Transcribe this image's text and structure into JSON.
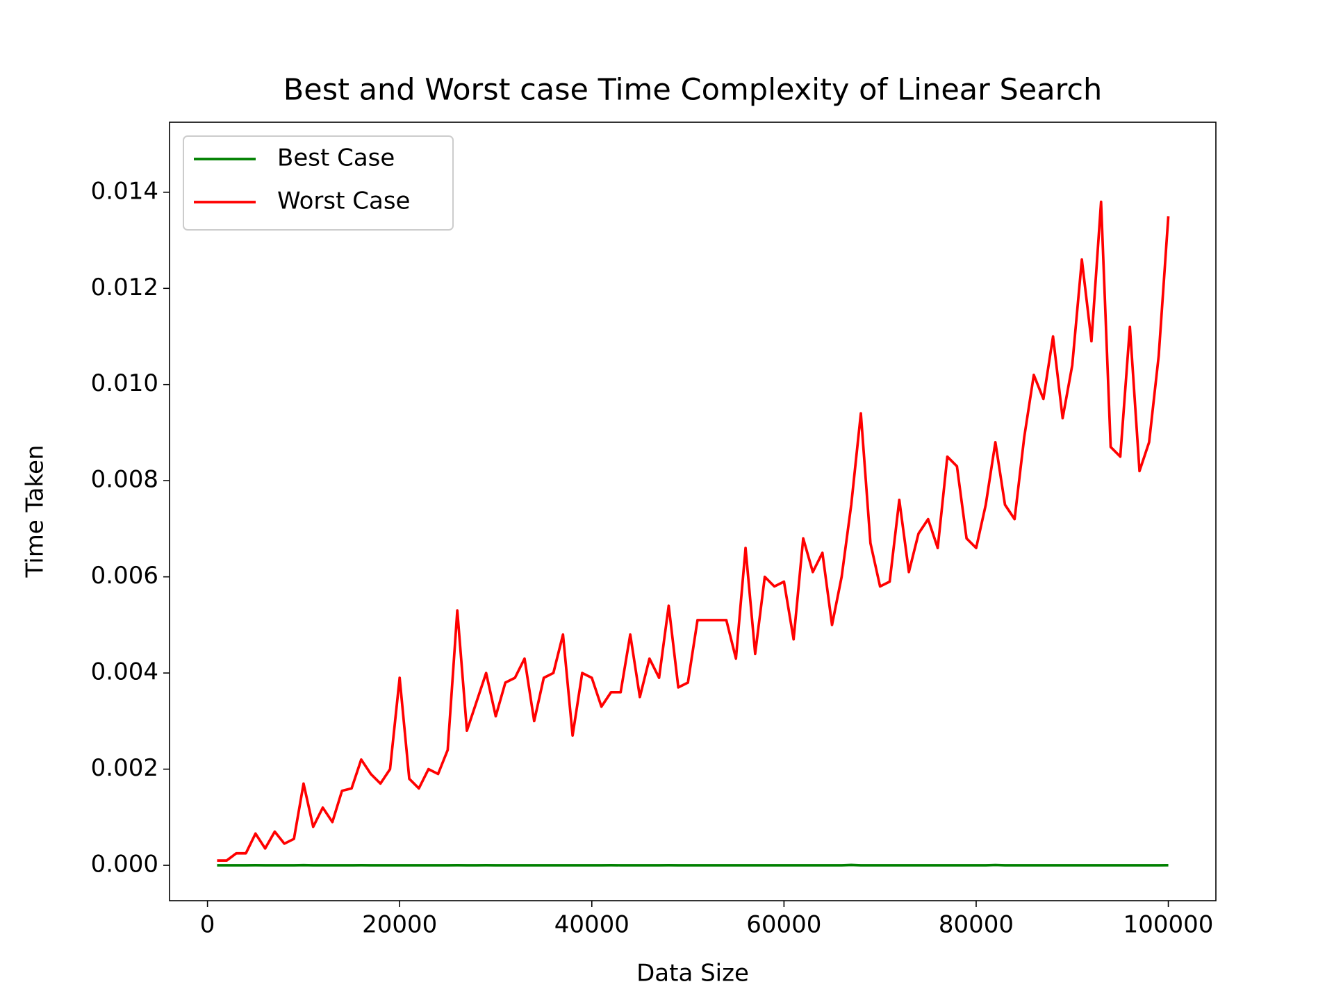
{
  "chart_data": {
    "type": "line",
    "title": "Best and Worst case Time Complexity of Linear Search",
    "x_label": "Data Size",
    "y_label": "Time Taken",
    "x": [
      1000,
      2000,
      3000,
      4000,
      5000,
      6000,
      7000,
      8000,
      9000,
      10000,
      11000,
      12000,
      13000,
      14000,
      15000,
      16000,
      17000,
      18000,
      19000,
      20000,
      21000,
      22000,
      23000,
      24000,
      25000,
      26000,
      27000,
      28000,
      29000,
      30000,
      31000,
      32000,
      33000,
      34000,
      35000,
      36000,
      37000,
      38000,
      39000,
      40000,
      41000,
      42000,
      43000,
      44000,
      45000,
      46000,
      47000,
      48000,
      49000,
      50000,
      51000,
      52000,
      53000,
      54000,
      55000,
      56000,
      57000,
      58000,
      59000,
      60000,
      61000,
      62000,
      63000,
      64000,
      65000,
      66000,
      67000,
      68000,
      69000,
      70000,
      71000,
      72000,
      73000,
      74000,
      75000,
      76000,
      77000,
      78000,
      79000,
      80000,
      81000,
      82000,
      83000,
      84000,
      85000,
      86000,
      87000,
      88000,
      89000,
      90000,
      91000,
      92000,
      93000,
      94000,
      95000,
      96000,
      97000,
      98000,
      99000,
      100000
    ],
    "series": [
      {
        "name": "Best Case",
        "color": "#008000",
        "values": [
          1e-06,
          1e-06,
          1e-06,
          1e-06,
          2e-06,
          1e-06,
          1e-06,
          1e-06,
          1e-06,
          4e-06,
          1e-06,
          1e-06,
          1e-06,
          1e-06,
          1e-06,
          2e-06,
          1e-06,
          1e-06,
          1e-06,
          1e-06,
          1e-06,
          1e-06,
          1e-06,
          1e-06,
          1e-06,
          2e-06,
          1e-06,
          1e-06,
          2e-06,
          1e-06,
          1e-06,
          1e-06,
          1e-06,
          1e-06,
          1e-06,
          1e-06,
          1e-06,
          1e-06,
          1e-06,
          1e-06,
          1e-06,
          2e-06,
          1e-06,
          1e-06,
          1e-06,
          1e-06,
          1e-06,
          2e-06,
          1e-06,
          1e-06,
          1e-06,
          1e-06,
          1e-06,
          1e-06,
          1e-06,
          1e-06,
          1e-06,
          1e-06,
          1e-06,
          1e-06,
          1e-06,
          1e-06,
          1e-06,
          1e-06,
          1e-06,
          1e-06,
          8e-06,
          1e-06,
          1e-06,
          1e-06,
          1e-06,
          1e-06,
          1e-06,
          1e-06,
          1e-06,
          1e-06,
          1e-06,
          1e-06,
          1e-06,
          1e-06,
          1e-06,
          7e-06,
          1e-06,
          1e-06,
          1e-06,
          1e-06,
          1e-06,
          1e-06,
          1e-06,
          1e-06,
          1e-06,
          1e-06,
          1e-06,
          1e-06,
          1e-06,
          1e-06,
          1e-06,
          1e-06,
          1e-06,
          2e-06
        ]
      },
      {
        "name": "Worst Case",
        "color": "#ff0000",
        "values": [
          0.0001,
          0.0001,
          0.00025,
          0.00025,
          0.00066,
          0.00035,
          0.0007,
          0.00045,
          0.00055,
          0.0017,
          0.0008,
          0.0012,
          0.0009,
          0.00155,
          0.0016,
          0.0022,
          0.0019,
          0.0017,
          0.002,
          0.0039,
          0.0018,
          0.0016,
          0.002,
          0.0019,
          0.0024,
          0.0053,
          0.0028,
          0.0034,
          0.004,
          0.0031,
          0.0038,
          0.0039,
          0.0043,
          0.003,
          0.0039,
          0.004,
          0.0048,
          0.0027,
          0.004,
          0.0039,
          0.0033,
          0.0036,
          0.0036,
          0.0048,
          0.0035,
          0.0043,
          0.0039,
          0.0054,
          0.0037,
          0.0038,
          0.0051,
          0.0051,
          0.0051,
          0.0051,
          0.0043,
          0.0066,
          0.0044,
          0.006,
          0.0058,
          0.0059,
          0.0047,
          0.0068,
          0.0061,
          0.0065,
          0.005,
          0.006,
          0.0075,
          0.0094,
          0.0067,
          0.0058,
          0.0059,
          0.0076,
          0.0061,
          0.0069,
          0.0072,
          0.0066,
          0.0085,
          0.0083,
          0.0068,
          0.0066,
          0.0075,
          0.0088,
          0.0075,
          0.0072,
          0.0089,
          0.0102,
          0.0097,
          0.011,
          0.0093,
          0.0104,
          0.0126,
          0.0109,
          0.0138,
          0.0087,
          0.0085,
          0.0112,
          0.0082,
          0.0088,
          0.0106,
          0.0135
        ]
      }
    ],
    "xlim": [
      -3950,
      104950
    ],
    "ylim": [
      -0.000736,
      0.015456
    ],
    "xticks": [
      0,
      20000,
      40000,
      60000,
      80000,
      100000
    ],
    "yticks": [
      {
        "value": 0,
        "label": "0.000"
      },
      {
        "value": 0.002,
        "label": "0.002"
      },
      {
        "value": 0.004,
        "label": "0.004"
      },
      {
        "value": 0.006,
        "label": "0.006"
      },
      {
        "value": 0.008,
        "label": "0.008"
      },
      {
        "value": 0.01,
        "label": "0.010"
      },
      {
        "value": 0.012,
        "label": "0.012"
      },
      {
        "value": 0.014,
        "label": "0.014"
      }
    ],
    "legend": "upper left"
  }
}
